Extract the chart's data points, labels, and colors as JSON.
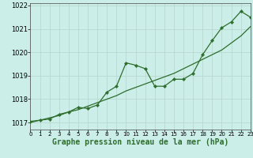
{
  "xlabel": "Graphe pression niveau de la mer (hPa)",
  "ylim": [
    1016.7,
    1022.1
  ],
  "xlim": [
    0,
    23
  ],
  "yticks": [
    1017,
    1018,
    1019,
    1020,
    1021,
    1022
  ],
  "xticks": [
    0,
    1,
    2,
    3,
    4,
    5,
    6,
    7,
    8,
    9,
    10,
    11,
    12,
    13,
    14,
    15,
    16,
    17,
    18,
    19,
    20,
    21,
    22,
    23
  ],
  "background_color": "#cceee8",
  "grid_color": "#b8d8d0",
  "line_color": "#2d6e2d",
  "marker_color": "#2d6e2d",
  "data_x": [
    0,
    1,
    2,
    3,
    4,
    5,
    6,
    7,
    8,
    9,
    10,
    11,
    12,
    13,
    14,
    15,
    16,
    17,
    18,
    19,
    20,
    21,
    22,
    23
  ],
  "data_y1": [
    1017.05,
    1017.1,
    1017.15,
    1017.35,
    1017.45,
    1017.65,
    1017.6,
    1017.75,
    1018.3,
    1018.55,
    1019.55,
    1019.45,
    1019.3,
    1018.55,
    1018.55,
    1018.85,
    1018.85,
    1019.1,
    1019.9,
    1020.5,
    1021.05,
    1021.3,
    1021.75,
    1021.5
  ],
  "data_y2": [
    1017.0,
    1017.1,
    1017.2,
    1017.3,
    1017.45,
    1017.55,
    1017.7,
    1017.85,
    1018.0,
    1018.15,
    1018.35,
    1018.5,
    1018.65,
    1018.8,
    1018.95,
    1019.1,
    1019.3,
    1019.5,
    1019.7,
    1019.9,
    1020.1,
    1020.4,
    1020.7,
    1021.1
  ],
  "ytick_fontsize": 6,
  "xtick_fontsize": 5,
  "xlabel_fontsize": 7,
  "figsize": [
    3.2,
    2.0
  ],
  "dpi": 100
}
